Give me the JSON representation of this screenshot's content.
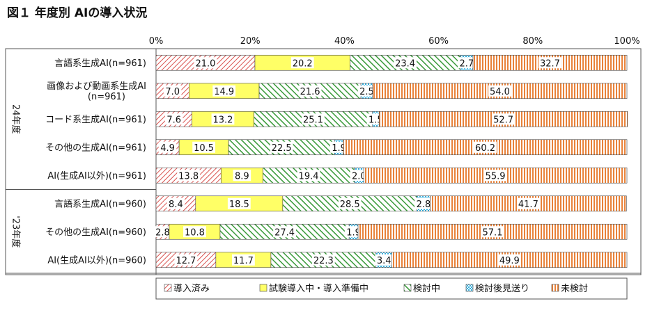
{
  "chart_data": {
    "type": "bar",
    "stacked": true,
    "orientation": "horizontal",
    "title": "図１ 年度別 AIの導入状況",
    "x_ticks": [
      "0%",
      "20%",
      "40%",
      "60%",
      "80%",
      "100%"
    ],
    "xlim": [
      0,
      100
    ],
    "legend_position": "bottom",
    "groups": [
      {
        "label": "24年度",
        "start": 0,
        "count": 5
      },
      {
        "label": "'23年度",
        "start": 5,
        "count": 3
      }
    ],
    "categories": [
      "言語系生成AI(n=961)",
      "画像および動画系生成AI\n(n=961)",
      "コード系生成AI(n=961)",
      "その他の生成AI(n=961)",
      "AI(生成AI以外)(n=961)",
      "言語系生成AI(n=960)",
      "その他の生成AI(n=960)",
      "AI(生成AI以外)(n=960)"
    ],
    "series": [
      {
        "name": "導入済み",
        "color": "#d9534f",
        "pattern": "diag-red",
        "values": [
          21.0,
          7.0,
          7.6,
          4.9,
          13.8,
          8.4,
          2.8,
          12.7
        ]
      },
      {
        "name": "試験導入中・導入準備中",
        "color": "#ffff66",
        "pattern": "solid-yellow",
        "values": [
          20.2,
          14.9,
          13.2,
          10.5,
          8.9,
          18.5,
          10.8,
          11.7
        ]
      },
      {
        "name": "検討中",
        "color": "#3a9a3a",
        "pattern": "diag-green",
        "values": [
          23.4,
          21.6,
          25.1,
          22.5,
          19.4,
          28.5,
          27.4,
          22.3
        ]
      },
      {
        "name": "検討後見送り",
        "color": "#31b0e0",
        "pattern": "grid-blue",
        "values": [
          2.7,
          2.5,
          1.5,
          1.9,
          2.0,
          2.8,
          1.9,
          3.4
        ]
      },
      {
        "name": "未検討",
        "color": "#e8823a",
        "pattern": "vert-orange",
        "values": [
          32.7,
          54.0,
          52.7,
          60.2,
          55.9,
          41.7,
          57.1,
          49.9
        ]
      }
    ]
  }
}
